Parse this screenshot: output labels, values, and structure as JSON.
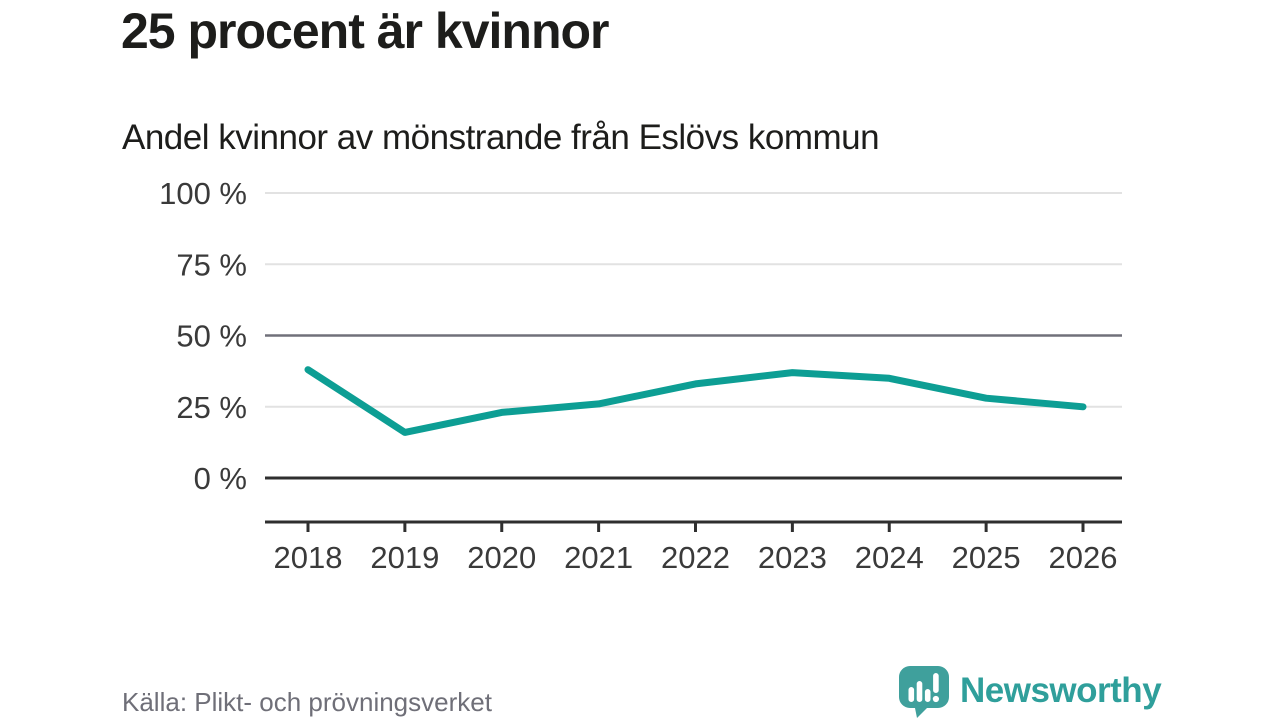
{
  "header": {
    "title": "25 procent är kvinnor",
    "subtitle": "Andel kvinnor av mönstrande från Eslövs kommun"
  },
  "footer": {
    "source": "Källa: Plikt- och prövningsverket",
    "logo_text": "Newsworthy",
    "logo_icon": "newsworthy-speech-bubble-barchart-icon"
  },
  "colors": {
    "line": "#0d9e94",
    "grid_light": "#e2e2e2",
    "grid_mid": "#70707a",
    "grid_dark": "#2f2f2f",
    "axis": "#2f2f2f",
    "tick_text": "#3a3a3a",
    "title_text": "#1d1d1b",
    "source_text": "#6f6f78",
    "logo_teal": "#2f9f9b"
  },
  "chart_data": {
    "type": "line",
    "title": "25 procent är kvinnor",
    "subtitle": "Andel kvinnor av mönstrande från Eslövs kommun",
    "categories": [
      "2018",
      "2019",
      "2020",
      "2021",
      "2022",
      "2023",
      "2024",
      "2025",
      "2026"
    ],
    "series": [
      {
        "name": "Andel kvinnor av mönstrande",
        "values": [
          38,
          16,
          23,
          26,
          33,
          37,
          35,
          28,
          25
        ]
      }
    ],
    "xlabel": "",
    "ylabel": "",
    "ylim": [
      0,
      100
    ],
    "yticks": [
      0,
      25,
      50,
      75,
      100
    ],
    "ytick_format": "{v} %",
    "grid": true,
    "legend_position": "none",
    "emphasized_gridlines": {
      "0": "dark",
      "50": "mid"
    },
    "source": "Källa: Plikt- och prövningsverket"
  }
}
